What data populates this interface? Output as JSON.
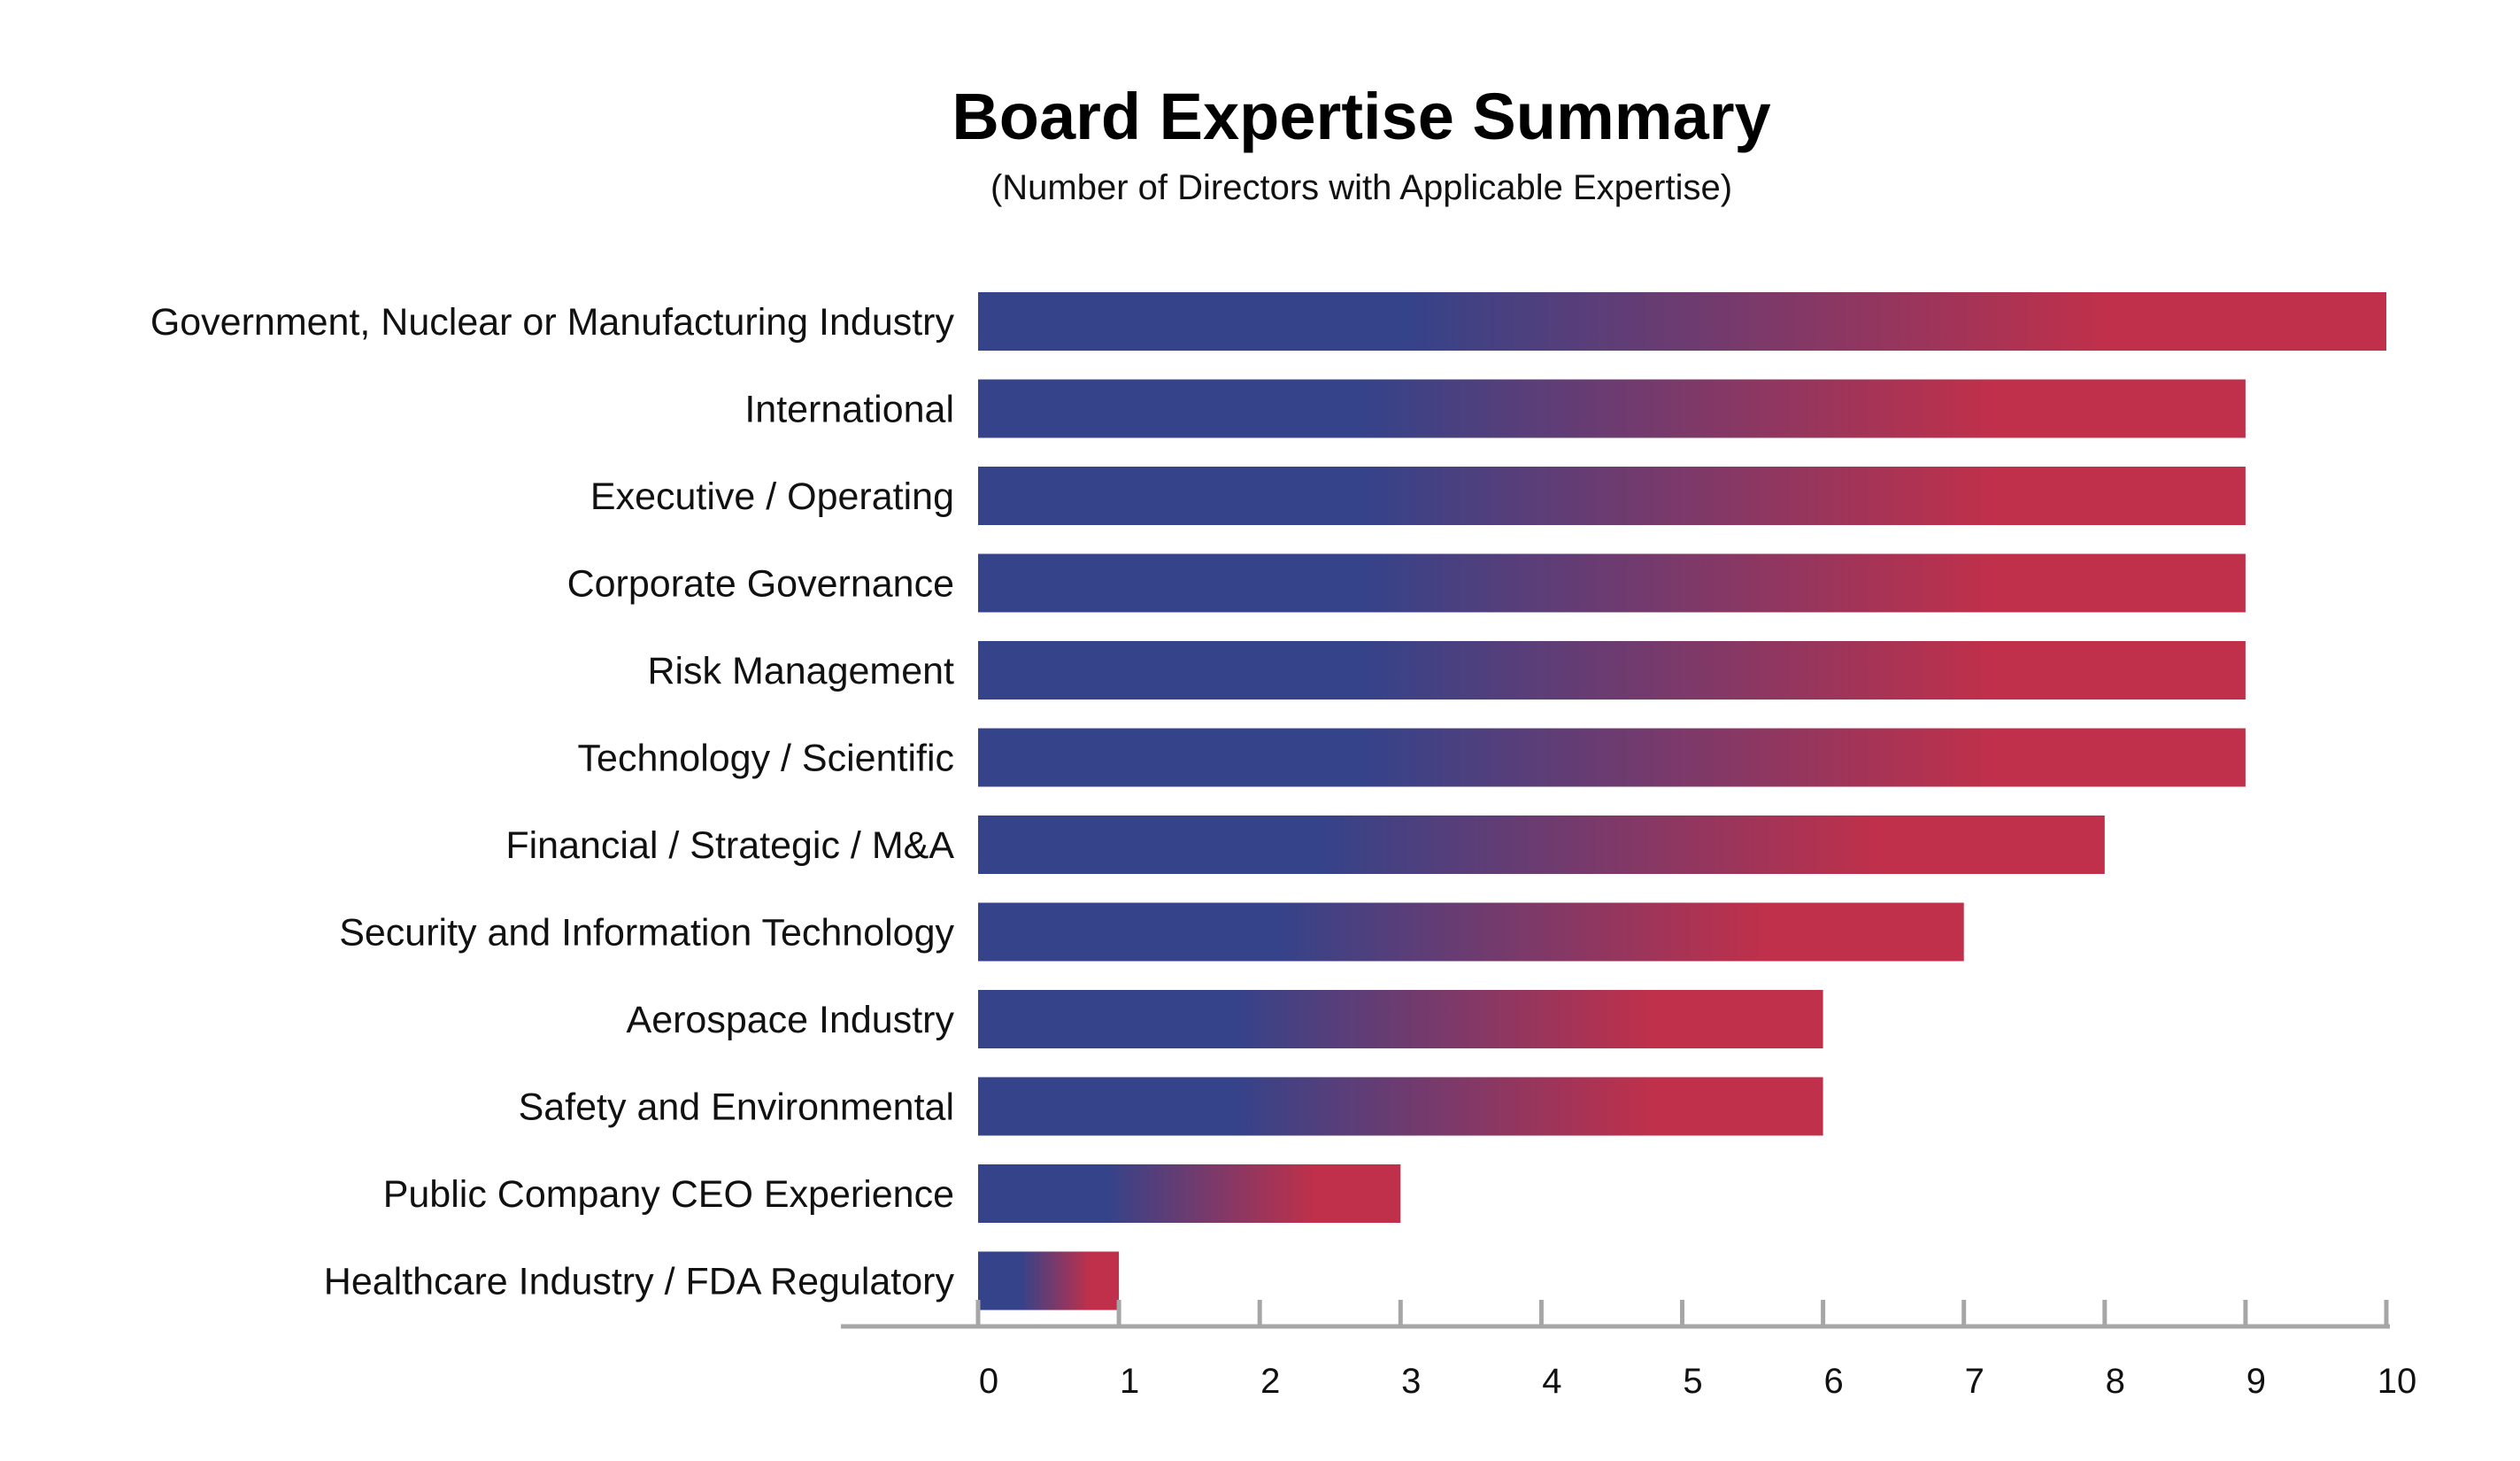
{
  "chart_data": {
    "type": "bar",
    "orientation": "horizontal",
    "title": "Board Expertise Summary",
    "subtitle": "(Number of Directors with Applicable Expertise)",
    "xlabel": "",
    "ylabel": "",
    "categories": [
      "Government, Nuclear or Manufacturing Industry",
      "International",
      "Executive / Operating",
      "Corporate Governance",
      "Risk Management",
      "Technology / Scientific",
      "Financial / Strategic / M&A",
      "Security and Information Technology",
      "Aerospace Industry",
      "Safety and Environmental",
      "Public Company CEO Experience",
      "Healthcare Industry / FDA Regulatory"
    ],
    "values": [
      10,
      9,
      9,
      9,
      9,
      9,
      8,
      7,
      6,
      6,
      3,
      1
    ],
    "xlim": [
      0,
      10
    ],
    "xticks": [
      "0",
      "1",
      "2",
      "3",
      "4",
      "5",
      "6",
      "7",
      "8",
      "9",
      "10"
    ],
    "grid": false,
    "legend": "none",
    "colors": {
      "bar_start": "#34438a",
      "bar_end": "#c0304a",
      "axis": "#a6a6a6",
      "text": "#111111"
    }
  }
}
